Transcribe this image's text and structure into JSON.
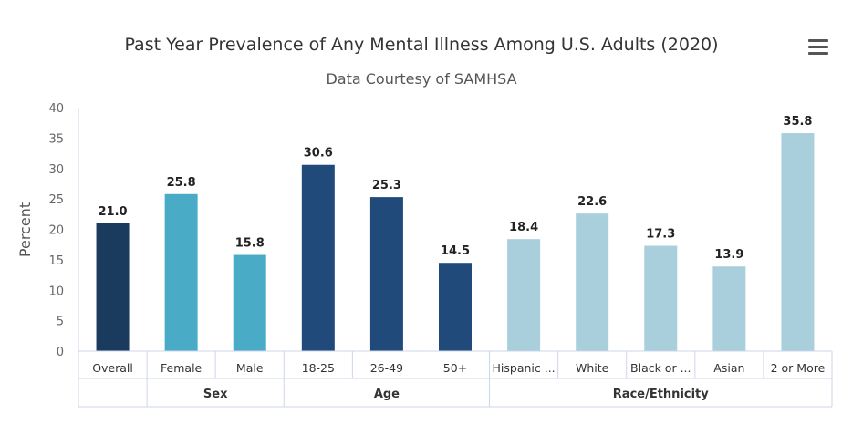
{
  "chart_data": {
    "type": "bar",
    "title": "Past Year Prevalence of Any Mental Illness Among U.S. Adults (2020)",
    "subtitle": "Data Courtesy of SAMHSA",
    "ylabel": "Percent",
    "xlabel": "",
    "ylim": [
      0,
      40
    ],
    "yticks": [
      0,
      5,
      10,
      15,
      20,
      25,
      30,
      35,
      40
    ],
    "grid": false,
    "categories": [
      "Overall",
      "Female",
      "Male",
      "18-25",
      "26-49",
      "50+",
      "Hispanic ...",
      "White",
      "Black or ...",
      "Asian",
      "2 or More"
    ],
    "values": [
      21.0,
      25.8,
      15.8,
      30.6,
      25.3,
      14.5,
      18.4,
      22.6,
      17.3,
      13.9,
      35.8
    ],
    "data_labels": [
      "21.0",
      "25.8",
      "15.8",
      "30.6",
      "25.3",
      "14.5",
      "18.4",
      "22.6",
      "17.3",
      "13.9",
      "35.8"
    ],
    "bar_colors": [
      "#1a3a5e",
      "#4aabc6",
      "#4aabc6",
      "#1f4a7a",
      "#1f4a7a",
      "#1f4a7a",
      "#a9cfdd",
      "#a9cfdd",
      "#a9cfdd",
      "#a9cfdd",
      "#a9cfdd"
    ],
    "groups": [
      {
        "label": "",
        "count": 1
      },
      {
        "label": "Sex",
        "count": 2
      },
      {
        "label": "Age",
        "count": 3
      },
      {
        "label": "Race/Ethnicity",
        "count": 5
      }
    ]
  },
  "menu": {
    "icon": "hamburger-menu-icon"
  }
}
